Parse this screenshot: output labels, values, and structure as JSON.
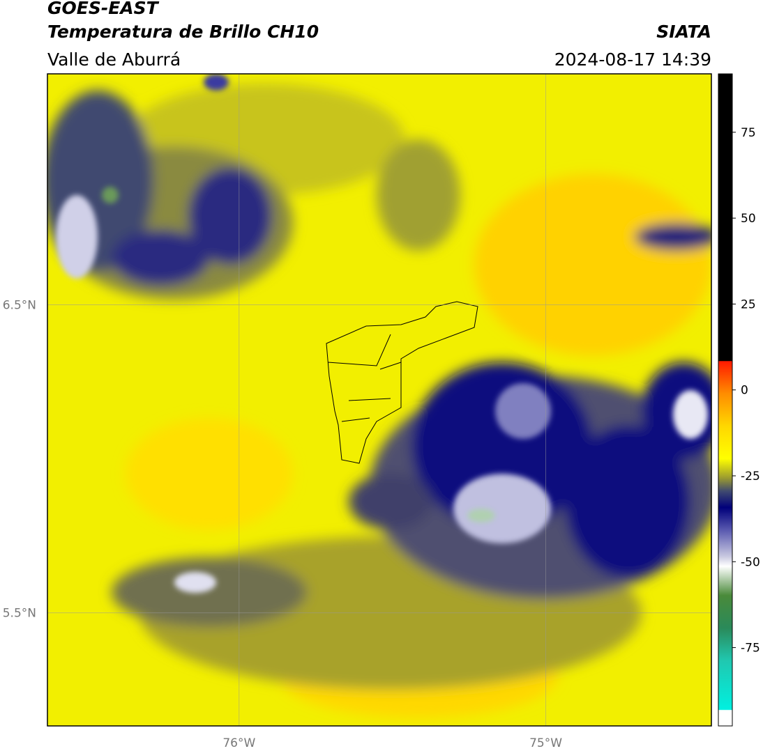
{
  "header": {
    "satellite": "GOES-EAST",
    "product": "Temperatura de Brillo CH10",
    "region": "Valle de Aburrá",
    "agency": "SIATA",
    "datetime": "2024-08-17 14:39"
  },
  "map": {
    "xlim": [
      -76.625,
      -74.46
    ],
    "ylim": [
      5.133,
      7.25
    ],
    "xticks": [
      {
        "value": -76,
        "label": "76°W"
      },
      {
        "value": -75,
        "label": "75°W"
      }
    ],
    "yticks": [
      {
        "value": 6.5,
        "label": "6.5°N"
      },
      {
        "value": 5.5,
        "label": "5.5°N"
      }
    ],
    "grid": true
  },
  "colorbar": {
    "lim": [
      -97.8,
      92
    ],
    "ticks": [
      75,
      50,
      25,
      0,
      -25,
      -50,
      -75
    ]
  }
}
